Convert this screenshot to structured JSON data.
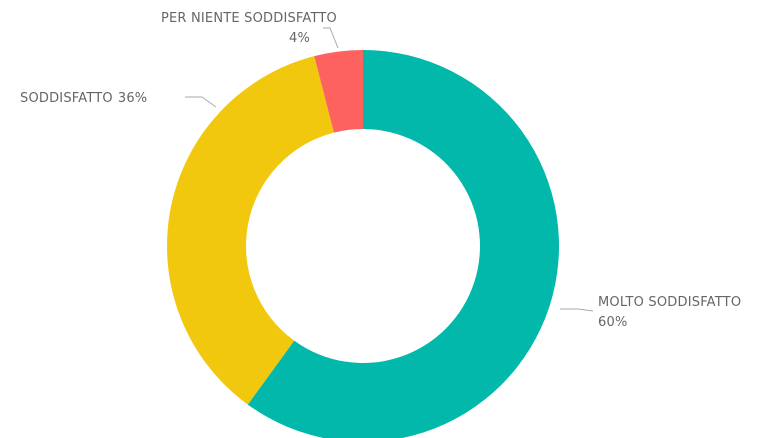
{
  "chart_data": {
    "type": "donut",
    "categories": [
      "MOLTO SODDISFATTO",
      "SODDISFATTO",
      "PER NIENTE SODDISFATTO"
    ],
    "values": [
      60,
      36,
      4
    ],
    "value_labels": [
      "60%",
      "36%",
      "4%"
    ],
    "colors": [
      "#01B8AA",
      "#F2C80F",
      "#FD625E"
    ]
  }
}
